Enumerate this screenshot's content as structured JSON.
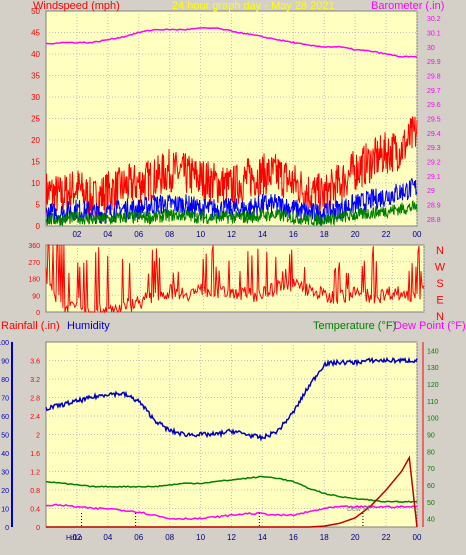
{
  "header": {
    "left_title": "Windspeed (mph)",
    "center_title": "24 hour graph day - May 28 2021",
    "right_title": "Barometer (.in)"
  },
  "colors": {
    "background": "#d4d0c8",
    "plot_bg": "#ffffc0",
    "grid": "#c0c0c0",
    "axis_red": "#ff0000",
    "barometer": "#ff00ff",
    "gust": "#ff0000",
    "wind": "#0000ff",
    "wind_avg": "#008000",
    "humidity": "#0000c0",
    "temperature": "#008000",
    "dewpoint": "#ff00ff",
    "rain": "#c00000",
    "title_yellow": "#ffff00"
  },
  "chart_data": [
    {
      "id": "wind_baro",
      "type": "line",
      "x_ticks": [
        "02",
        "04",
        "06",
        "08",
        "10",
        "12",
        "14",
        "16",
        "18",
        "20",
        "22",
        "00"
      ],
      "left_axis": {
        "label": "Windspeed (mph)",
        "ticks": [
          "0",
          "5",
          "10",
          "15",
          "20",
          "25",
          "30",
          "35",
          "40",
          "45",
          "50"
        ],
        "ylim": [
          0,
          50
        ]
      },
      "right_axis": {
        "label": "Barometer (.in)",
        "ticks": [
          "28.8",
          "28.9",
          "29",
          "29.1",
          "29.2",
          "29.3",
          "29.4",
          "29.5",
          "29.6",
          "29.7",
          "29.8",
          "29.9",
          "30",
          "30.1",
          "30.2"
        ],
        "ylim": [
          28.75,
          30.25
        ]
      },
      "series": [
        {
          "name": "Barometer",
          "color": "#ff00ff",
          "axis": "right",
          "x": [
            0,
            1,
            2,
            3,
            4,
            5,
            6,
            7,
            8,
            9,
            10,
            11,
            12,
            13,
            14,
            15,
            16,
            17,
            18,
            19,
            20,
            21,
            22,
            23,
            24
          ],
          "y": [
            30.02,
            30.03,
            30.03,
            30.03,
            30.05,
            30.07,
            30.1,
            30.12,
            30.12,
            30.12,
            30.13,
            30.13,
            30.11,
            30.09,
            30.07,
            30.05,
            30.03,
            30.01,
            30.0,
            30.0,
            29.98,
            29.97,
            29.95,
            29.93,
            29.93
          ]
        },
        {
          "name": "Wind gust",
          "color": "#ff0000",
          "axis": "left",
          "x": [
            0,
            1,
            2,
            3,
            4,
            5,
            6,
            7,
            8,
            9,
            10,
            11,
            12,
            13,
            14,
            15,
            16,
            17,
            18,
            19,
            20,
            21,
            22,
            23,
            24
          ],
          "y": [
            8,
            7,
            9,
            6,
            8,
            9,
            10,
            11,
            13,
            12,
            11,
            10,
            9,
            11,
            12,
            12,
            10,
            8,
            7,
            10,
            13,
            15,
            17,
            18,
            22
          ]
        },
        {
          "name": "Wind speed",
          "color": "#0000ff",
          "axis": "left",
          "x": [
            0,
            1,
            2,
            3,
            4,
            5,
            6,
            7,
            8,
            9,
            10,
            11,
            12,
            13,
            14,
            15,
            16,
            17,
            18,
            19,
            20,
            21,
            22,
            23,
            24
          ],
          "y": [
            3,
            3,
            4,
            3,
            3,
            4,
            4,
            5,
            5,
            5,
            4,
            4,
            4,
            4,
            5,
            5,
            4,
            3,
            3,
            4,
            5,
            6,
            7,
            8,
            9
          ]
        },
        {
          "name": "Wind average",
          "color": "#008000",
          "axis": "left",
          "x": [
            0,
            1,
            2,
            3,
            4,
            5,
            6,
            7,
            8,
            9,
            10,
            11,
            12,
            13,
            14,
            15,
            16,
            17,
            18,
            19,
            20,
            21,
            22,
            23,
            24
          ],
          "y": [
            1.5,
            1.5,
            2,
            1.5,
            1.5,
            2,
            2,
            2,
            2.5,
            2.5,
            2,
            2,
            2,
            2,
            2.5,
            2.5,
            2,
            1.5,
            1.5,
            2,
            2.5,
            3,
            3.5,
            4,
            4.5
          ]
        }
      ]
    },
    {
      "id": "wind_dir",
      "type": "line",
      "x_ticks": [
        "02",
        "04",
        "06",
        "08",
        "10",
        "12",
        "14",
        "16",
        "18",
        "20",
        "22",
        "00"
      ],
      "left_axis": {
        "ticks": [
          "0",
          "90",
          "180",
          "270",
          "360"
        ],
        "ylim": [
          0,
          360
        ]
      },
      "right_axis": {
        "ticks": [
          "N",
          "E",
          "S",
          "W",
          "N"
        ]
      },
      "series": [
        {
          "name": "Wind direction",
          "color": "#ff0000",
          "x": [
            0,
            1,
            2,
            3,
            4,
            5,
            6,
            7,
            8,
            9,
            10,
            11,
            12,
            13,
            14,
            15,
            16,
            17,
            18,
            19,
            20,
            21,
            22,
            23,
            24
          ],
          "y": [
            200,
            20,
            40,
            5,
            10,
            30,
            60,
            90,
            110,
            100,
            120,
            100,
            110,
            90,
            100,
            150,
            140,
            110,
            80,
            90,
            100,
            80,
            110,
            90,
            110
          ]
        }
      ]
    },
    {
      "id": "temp_hum_rain",
      "type": "line",
      "x_ticks": [
        "02",
        "04",
        "06",
        "08",
        "10",
        "12",
        "14",
        "16",
        "18",
        "20",
        "22",
        "00"
      ],
      "rain_axis": {
        "label": "Rainfall (.in)",
        "ticks": [
          "0",
          "0.4",
          "0.8",
          "1.2",
          "1.6",
          "2",
          "2.4",
          "2.8",
          "3.2",
          "3.6"
        ],
        "ylim": [
          0,
          4.0
        ]
      },
      "humidity_axis": {
        "label": "Humidity",
        "ticks": [
          "0",
          "10",
          "20",
          "30",
          "40",
          "50",
          "60",
          "70",
          "80",
          "90",
          "100"
        ],
        "ylim": [
          0,
          100
        ]
      },
      "temp_axis": {
        "label": "Temperature (°F)",
        "label2": "Dew Point (°F)",
        "ticks": [
          "40",
          "50",
          "60",
          "70",
          "80",
          "90",
          "100",
          "110",
          "120",
          "130",
          "140"
        ],
        "ylim": [
          35,
          145
        ]
      },
      "markers": [
        "Hi/Lo",
        "Hi",
        "Lo",
        "Dew Pt"
      ],
      "series": [
        {
          "name": "Humidity",
          "color": "#0000c0",
          "axis": "humidity",
          "x": [
            0,
            1,
            2,
            3,
            4,
            5,
            6,
            7,
            8,
            9,
            10,
            11,
            12,
            13,
            14,
            15,
            16,
            17,
            18,
            19,
            20,
            21,
            22,
            23,
            24
          ],
          "y": [
            64,
            66,
            68,
            70,
            72,
            72,
            68,
            58,
            52,
            50,
            50,
            50,
            52,
            50,
            48,
            52,
            62,
            76,
            88,
            89,
            89,
            90,
            90,
            90,
            90
          ]
        },
        {
          "name": "Temperature",
          "color": "#008000",
          "axis": "temp",
          "x": [
            0,
            1,
            2,
            3,
            4,
            5,
            6,
            7,
            8,
            9,
            10,
            11,
            12,
            13,
            14,
            15,
            16,
            17,
            18,
            19,
            20,
            21,
            22,
            23,
            24
          ],
          "y": [
            62,
            61,
            60,
            59,
            59,
            59,
            59,
            59,
            60,
            61,
            61,
            62,
            63,
            64,
            65,
            64,
            62,
            58,
            55,
            53,
            52,
            51,
            50,
            50,
            50
          ]
        },
        {
          "name": "Dew Point",
          "color": "#ff00ff",
          "axis": "temp",
          "x": [
            0,
            1,
            2,
            3,
            4,
            5,
            6,
            7,
            8,
            9,
            10,
            11,
            12,
            13,
            14,
            15,
            16,
            17,
            18,
            19,
            20,
            21,
            22,
            23,
            24
          ],
          "y": [
            48,
            48,
            47,
            46,
            46,
            45,
            44,
            42,
            40,
            40,
            40,
            41,
            42,
            43,
            43,
            42,
            42,
            44,
            46,
            47,
            47,
            47,
            47,
            47,
            47
          ]
        },
        {
          "name": "Rainfall",
          "color": "#c00000",
          "axis": "rain",
          "x": [
            0,
            1,
            2,
            3,
            4,
            5,
            6,
            7,
            8,
            9,
            10,
            11,
            12,
            13,
            14,
            15,
            16,
            17,
            18,
            19,
            20,
            21,
            22,
            23,
            23.5,
            24
          ],
          "y": [
            0,
            0,
            0,
            0,
            0,
            0,
            0,
            0,
            0,
            0,
            0,
            0,
            0,
            0,
            0,
            0,
            0,
            0,
            0.02,
            0.08,
            0.2,
            0.45,
            0.8,
            1.2,
            1.5,
            0
          ]
        }
      ]
    }
  ]
}
